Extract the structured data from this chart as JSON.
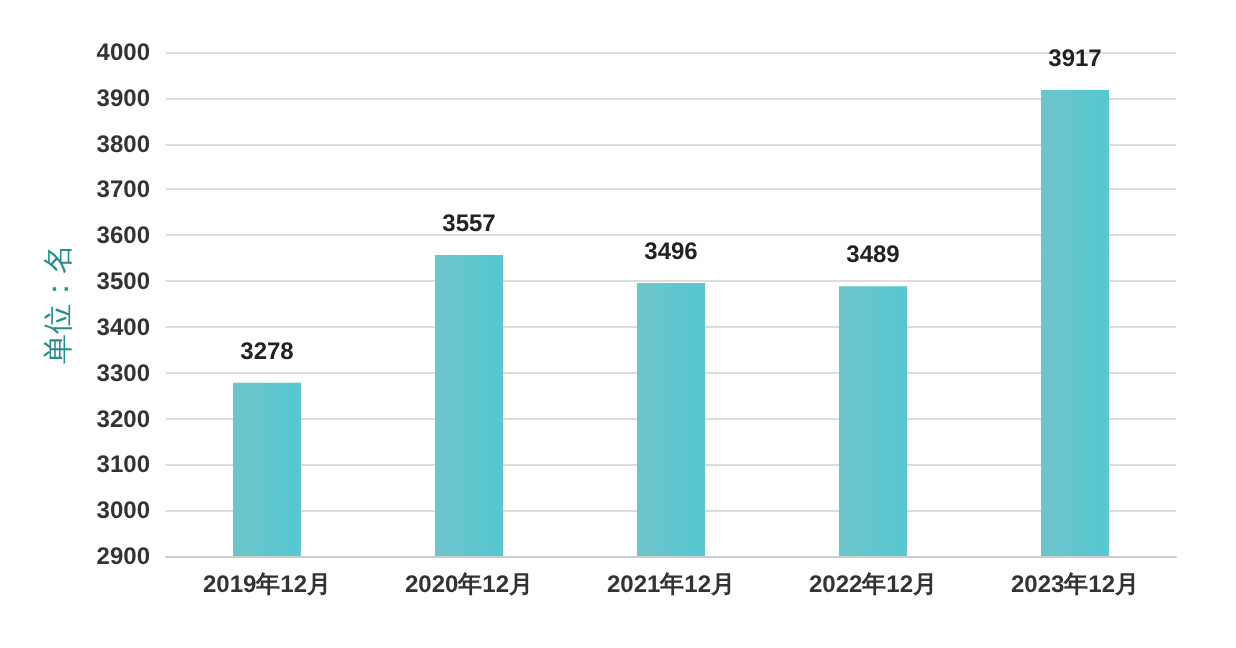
{
  "chart_data": {
    "type": "bar",
    "ylabel": "单位：名",
    "categories": [
      "2019年12月",
      "2020年12月",
      "2021年12月",
      "2022年12月",
      "2023年12月"
    ],
    "series": [
      {
        "color": "#4db6be",
        "values": [
          3278,
          3557,
          3496,
          3489,
          3917
        ]
      }
    ],
    "ylim": [
      2900,
      4000
    ],
    "yticks": [
      2900,
      3000,
      3100,
      3200,
      3300,
      3400,
      3500,
      3600,
      3700,
      3800,
      3900,
      4000
    ],
    "grid": "y",
    "data_labels": true
  }
}
